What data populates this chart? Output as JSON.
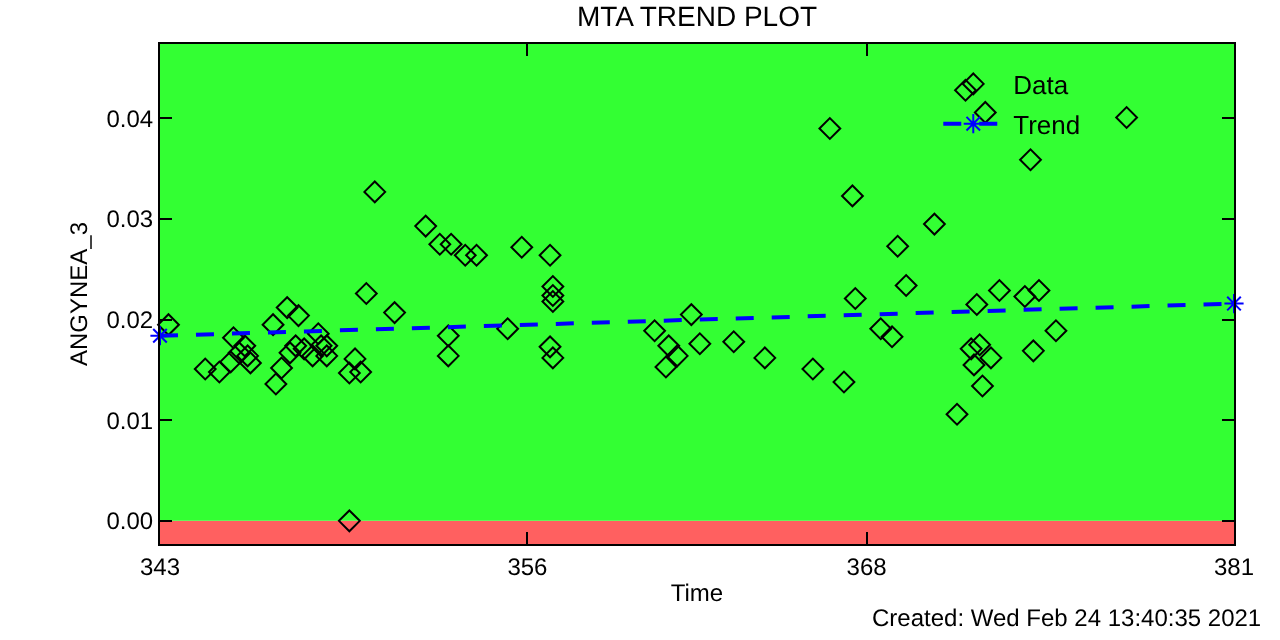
{
  "chart_data": {
    "type": "scatter",
    "title": "MTA TREND PLOT",
    "xlabel": "Time",
    "ylabel": "ANGYNEA_3",
    "annotations": [
      "Created: Wed Feb 24 13:40:35 2021"
    ],
    "xlim": [
      343,
      381
    ],
    "xticks": [
      343,
      356,
      368,
      381
    ],
    "ylim": [
      -0.0023,
      0.0474
    ],
    "yticks": [
      {
        "value": 0,
        "label": "0.00"
      },
      {
        "value": 0.01,
        "label": "0.01"
      },
      {
        "value": 0.02,
        "label": "0.02"
      },
      {
        "value": 0.03,
        "label": "0.03"
      },
      {
        "value": 0.04,
        "label": "0.04"
      }
    ],
    "grid": false,
    "legend": "top right",
    "bands": [
      {
        "axis": "y",
        "from": -0.0023,
        "to": 0,
        "color": "#ff6060"
      },
      {
        "axis": "y",
        "from": 0,
        "to": 0.0474,
        "color": "#33ff33"
      }
    ],
    "series": [
      {
        "name": "Data",
        "type": "scatter",
        "color": "#000000",
        "marker": "diamond",
        "x": [
          343.3,
          344.6,
          345.1,
          345.5,
          345.6,
          345.8,
          346.0,
          346.2,
          346.1,
          347.1,
          347.0,
          347.3,
          347.5,
          347.9,
          347.6,
          347.8,
          348.1,
          348.4,
          348.6,
          348.7,
          348.9,
          348.9,
          349.7,
          349.9,
          349.7,
          350.1,
          350.3,
          350.6,
          351.3,
          352.4,
          352.9,
          353.3,
          353.2,
          353.2,
          353.8,
          354.2,
          355.3,
          355.8,
          356.8,
          356.9,
          356.9,
          356.9,
          356.8,
          356.9,
          360.5,
          360.9,
          361.0,
          361.3,
          361.8,
          362.1,
          363.3,
          364.4,
          366.1,
          366.7,
          367.2,
          367.5,
          367.6,
          368.5,
          368.9,
          369.1,
          369.4,
          370.4,
          371.5,
          372.2,
          373.8,
          377.2,
          371.2,
          371.9,
          372.7,
          373.6,
          374.1,
          374.7,
          373.9,
          371.7,
          372.0,
          372.4,
          371.8,
          372.1
        ],
        "values": [
          0.0195,
          0.0151,
          0.0148,
          0.0158,
          0.0182,
          0.0167,
          0.0174,
          0.0157,
          0.0164,
          0.0136,
          0.0195,
          0.0152,
          0.0212,
          0.0204,
          0.0167,
          0.0174,
          0.0171,
          0.0164,
          0.0186,
          0.0174,
          0.0174,
          0.0164,
          0.0,
          0.0161,
          0.0147,
          0.0148,
          0.0226,
          0.0327,
          0.0207,
          0.0293,
          0.0275,
          0.0275,
          0.0184,
          0.0164,
          0.0264,
          0.0264,
          0.0191,
          0.0272,
          0.0264,
          0.0233,
          0.0224,
          0.0218,
          0.0173,
          0.0162,
          0.0189,
          0.0153,
          0.0174,
          0.0164,
          0.0205,
          0.0176,
          0.0178,
          0.0162,
          0.0151,
          0.039,
          0.0138,
          0.0323,
          0.0221,
          0.0191,
          0.0183,
          0.0273,
          0.0234,
          0.0295,
          0.0428,
          0.0406,
          0.0359,
          0.0401,
          0.0106,
          0.0215,
          0.0229,
          0.0223,
          0.0229,
          0.0189,
          0.0169,
          0.0171,
          0.0175,
          0.0162,
          0.0155,
          0.0134
        ]
      },
      {
        "name": "Trend",
        "type": "line",
        "color": "#0000ff",
        "marker": "cross",
        "line_style": "dashed",
        "x": [
          343,
          381
        ],
        "values": [
          0.0184,
          0.0216
        ]
      }
    ]
  }
}
